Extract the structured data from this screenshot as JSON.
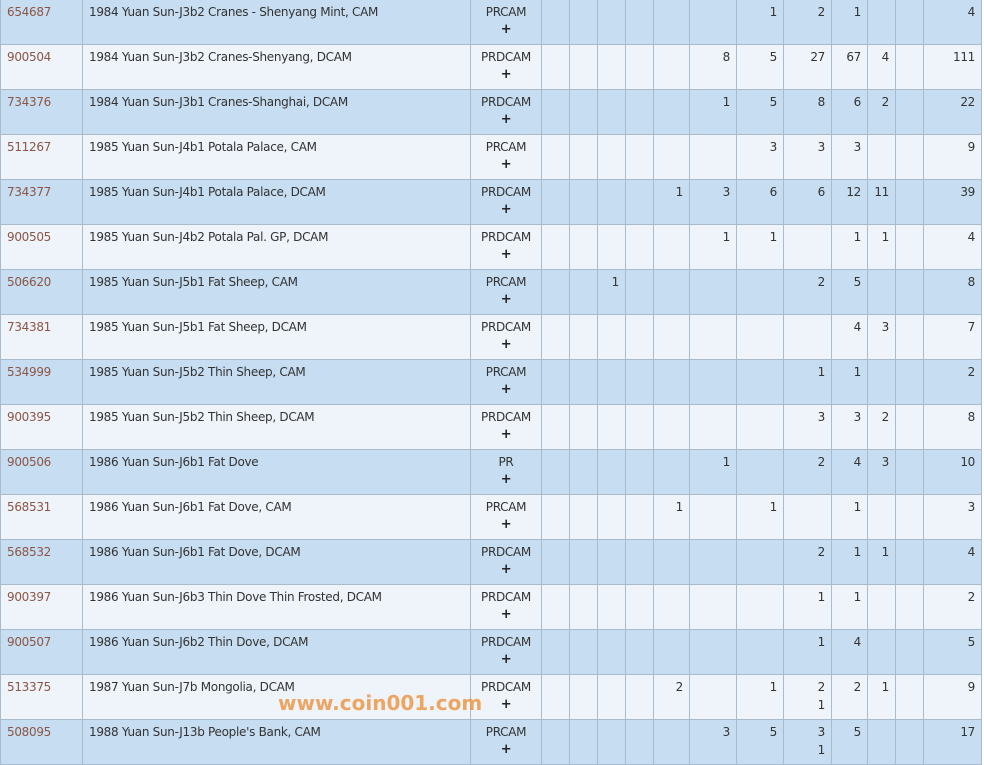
{
  "watermark": "www.coin001.com",
  "add_icon": "plus-icon",
  "colors": {
    "row_odd": "#c7ddf1",
    "row_even": "#eef4fa",
    "id_link": "#8b5646",
    "watermark": "#eb9646"
  },
  "rows": [
    {
      "id": "654687",
      "desc": "1984 Yuan Sun-J3b2 Cranes - Shenyang Mint, CAM",
      "grade": "PRCAM",
      "counts": [
        "",
        "",
        "",
        "",
        "",
        "",
        "1",
        "2",
        "1",
        "",
        "",
        "4"
      ]
    },
    {
      "id": "900504",
      "desc": "1984 Yuan Sun-J3b2 Cranes-Shenyang, DCAM",
      "grade": "PRDCAM",
      "counts": [
        "",
        "",
        "",
        "",
        "",
        "8",
        "5",
        "27",
        "67",
        "4",
        "",
        "111"
      ]
    },
    {
      "id": "734376",
      "desc": "1984 Yuan Sun-J3b1 Cranes-Shanghai, DCAM",
      "grade": "PRDCAM",
      "counts": [
        "",
        "",
        "",
        "",
        "",
        "1",
        "5",
        "8",
        "6",
        "2",
        "",
        "22"
      ]
    },
    {
      "id": "511267",
      "desc": "1985 Yuan Sun-J4b1 Potala Palace, CAM",
      "grade": "PRCAM",
      "counts": [
        "",
        "",
        "",
        "",
        "",
        "",
        "3",
        "3",
        "3",
        "",
        "",
        "9"
      ]
    },
    {
      "id": "734377",
      "desc": "1985 Yuan Sun-J4b1 Potala Palace, DCAM",
      "grade": "PRDCAM",
      "counts": [
        "",
        "",
        "",
        "",
        "1",
        "3",
        "6",
        "6",
        "12",
        "11",
        "",
        "39"
      ]
    },
    {
      "id": "900505",
      "desc": "1985 Yuan Sun-J4b2 Potala Pal. GP, DCAM",
      "grade": "PRDCAM",
      "counts": [
        "",
        "",
        "",
        "",
        "",
        "1",
        "1",
        "",
        "1",
        "1",
        "",
        "4"
      ]
    },
    {
      "id": "506620",
      "desc": "1985 Yuan Sun-J5b1 Fat Sheep, CAM",
      "grade": "PRCAM",
      "counts": [
        "",
        "",
        "1",
        "",
        "",
        "",
        "",
        "2",
        "5",
        "",
        "",
        "8"
      ]
    },
    {
      "id": "734381",
      "desc": "1985 Yuan Sun-J5b1 Fat Sheep, DCAM",
      "grade": "PRDCAM",
      "counts": [
        "",
        "",
        "",
        "",
        "",
        "",
        "",
        "",
        "4",
        "3",
        "",
        "7"
      ]
    },
    {
      "id": "534999",
      "desc": "1985 Yuan Sun-J5b2 Thin Sheep, CAM",
      "grade": "PRCAM",
      "counts": [
        "",
        "",
        "",
        "",
        "",
        "",
        "",
        "1",
        "1",
        "",
        "",
        "2"
      ]
    },
    {
      "id": "900395",
      "desc": "1985 Yuan Sun-J5b2 Thin Sheep, DCAM",
      "grade": "PRDCAM",
      "counts": [
        "",
        "",
        "",
        "",
        "",
        "",
        "",
        "3",
        "3",
        "2",
        "",
        "8"
      ]
    },
    {
      "id": "900506",
      "desc": "1986 Yuan Sun-J6b1 Fat Dove",
      "grade": "PR",
      "counts": [
        "",
        "",
        "",
        "",
        "",
        "1",
        "",
        "2",
        "4",
        "3",
        "",
        "10"
      ]
    },
    {
      "id": "568531",
      "desc": "1986 Yuan Sun-J6b1 Fat Dove, CAM",
      "grade": "PRCAM",
      "counts": [
        "",
        "",
        "",
        "",
        "1",
        "",
        "1",
        "",
        "1",
        "",
        "",
        "3"
      ]
    },
    {
      "id": "568532",
      "desc": "1986 Yuan Sun-J6b1 Fat Dove, DCAM",
      "grade": "PRDCAM",
      "counts": [
        "",
        "",
        "",
        "",
        "",
        "",
        "",
        "2",
        "1",
        "1",
        "",
        "4"
      ]
    },
    {
      "id": "900397",
      "desc": "1986 Yuan Sun-J6b3 Thin Dove Thin Frosted, DCAM",
      "grade": "PRDCAM",
      "counts": [
        "",
        "",
        "",
        "",
        "",
        "",
        "",
        "1",
        "1",
        "",
        "",
        "2"
      ]
    },
    {
      "id": "900507",
      "desc": "1986 Yuan Sun-J6b2 Thin Dove, DCAM",
      "grade": "PRDCAM",
      "counts": [
        "",
        "",
        "",
        "",
        "",
        "",
        "",
        "1",
        "4",
        "",
        "",
        "5"
      ]
    },
    {
      "id": "513375",
      "desc": "1987 Yuan Sun-J7b Mongolia, DCAM",
      "grade": "PRDCAM",
      "counts": [
        "",
        "",
        "",
        "",
        "2",
        "",
        "1",
        "2\n1",
        "2",
        "1",
        "",
        "9"
      ]
    },
    {
      "id": "508095",
      "desc": "1988 Yuan Sun-J13b People's Bank, CAM",
      "grade": "PRCAM",
      "counts": [
        "",
        "",
        "",
        "",
        "",
        "3",
        "5",
        "3\n1",
        "5",
        "",
        "",
        "17"
      ]
    }
  ]
}
